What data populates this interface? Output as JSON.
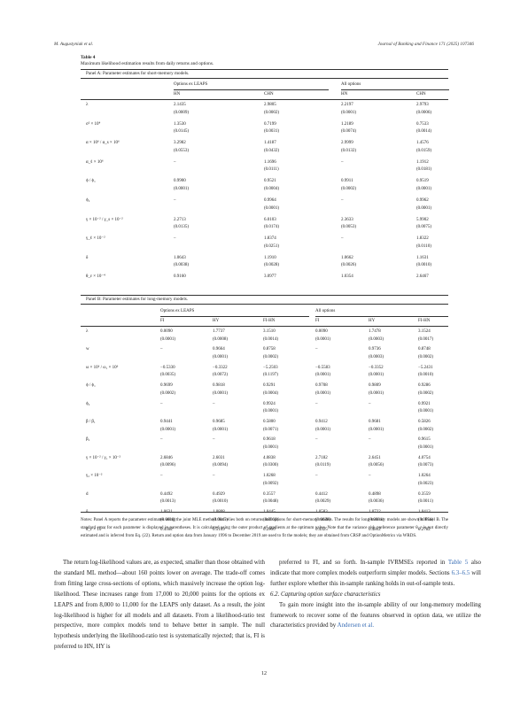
{
  "header": {
    "left": "M. Augustyniak et al.",
    "right": "Journal of Banking and Finance 171 (2025) 107346"
  },
  "table": {
    "title": "Table 4",
    "caption": "Maximum likelihood estimation results from daily returns and options.",
    "panel_a": {
      "label": "Panel A: Parameter estimates for short-memory models.",
      "groups": [
        "Options ex LEAPS",
        "All options"
      ],
      "cols": [
        "HN",
        "CHN",
        "HN",
        "CHN"
      ],
      "rows": [
        {
          "p": "λ",
          "v": [
            "2.1435",
            "2.9805",
            "2.2197",
            "2.9793"
          ],
          "se": [
            "(0.0009)",
            "(0.0002)",
            "(0.0001)",
            "(0.0006)"
          ]
        },
        {
          "p": "σ² × 10⁴",
          "v": [
            "1.3530",
            "0.7199",
            "1.2189",
            "0.7533"
          ],
          "se": [
            "(0.0145)",
            "(0.0031)",
            "(0.0074)",
            "(0.0014)"
          ]
        },
        {
          "p": "α × 10⁶ / α_s × 10⁶",
          "v": [
            "3.2982",
            "1.4187",
            "2.9999",
            "1.4576"
          ],
          "se": [
            "(0.0553)",
            "(0.0432)",
            "(0.0132)",
            "(0.0159)"
          ]
        },
        {
          "p": "α_ℓ × 10⁶",
          "v": [
            "–",
            "1.1696",
            "–",
            "1.1912"
          ],
          "se": [
            "",
            "(0.0111)",
            "",
            "(0.0181)"
          ]
        },
        {
          "p": "ϕ / ϕ₁",
          "v": [
            "0.9900",
            "0.9521",
            "0.9911",
            "0.9519"
          ],
          "se": [
            "(0.0001)",
            "(0.0004)",
            "(0.0002)",
            "(0.0001)"
          ]
        },
        {
          "p": "ϕ₂",
          "v": [
            "–",
            "0.9964",
            "–",
            "0.9962"
          ],
          "se": [
            "",
            "(0.0001)",
            "",
            "(0.0001)"
          ]
        },
        {
          "p": "γ × 10⁻² / γ_s × 10⁻²",
          "v": [
            "2.2713",
            "6.0103",
            "2.3633",
            "5.9902"
          ],
          "se": [
            "(0.0135)",
            "(0.0174)",
            "(0.0053)",
            "(0.0075)"
          ]
        },
        {
          "p": "γ_ℓ × 10⁻²",
          "v": [
            "–",
            "1.8374",
            "–",
            "1.8322"
          ],
          "se": [
            "",
            "(0.0251)",
            "",
            "(0.0110)"
          ]
        },
        {
          "p": "δ",
          "v": [
            "1.0643",
            "1.1910",
            "1.0662",
            "1.1631"
          ],
          "se": [
            "(0.0038)",
            "(0.0028)",
            "(0.0026)",
            "(0.0010)"
          ]
        },
        {
          "p": "θ_ε × 10⁻⁴",
          "v": [
            "0.9160",
            "3.0977",
            "1.0354",
            "2.6467"
          ],
          "se": [
            "",
            "",
            "",
            ""
          ]
        }
      ]
    },
    "panel_b": {
      "label": "Panel B: Parameter estimates for long-memory models.",
      "groups": [
        "Options ex LEAPS",
        "All options"
      ],
      "cols": [
        "FI",
        "HY",
        "FI-HN",
        "FI",
        "HY",
        "FI-HN"
      ],
      "rows": [
        {
          "p": "λ",
          "v": [
            "0.0090",
            "1.7737",
            "3.1510",
            "0.0090",
            "1.7478",
            "3.1524"
          ],
          "se": [
            "(0.0001)",
            "(0.0008)",
            "(0.0014)",
            "(0.0001)",
            "(0.0003)",
            "(0.0017)"
          ]
        },
        {
          "p": "w",
          "v": [
            "–",
            "0.9664",
            "0.8758",
            "–",
            "0.9736",
            "0.8748"
          ],
          "se": [
            "",
            "(0.0001)",
            "(0.0002)",
            "",
            "(0.0003)",
            "(0.0002)"
          ]
        },
        {
          "p": "ω × 10⁶ / ω₁ × 10⁶",
          "v": [
            "−0.5330",
            "−0.3322",
            "−5.2503",
            "−0.5583",
            "−0.3352",
            "−5.2431"
          ],
          "se": [
            "(0.0035)",
            "(0.0072)",
            "(0.1197)",
            "(0.0001)",
            "(0.0001)",
            "(0.0010)"
          ]
        },
        {
          "p": "ϕ / ϕ₁",
          "v": [
            "0.9699",
            "0.9818",
            "0.9291",
            "0.9708",
            "0.9809",
            "0.9286"
          ],
          "se": [
            "(0.0002)",
            "(0.0001)",
            "(0.0004)",
            "(0.0001)",
            "(0.0001)",
            "(0.0002)"
          ]
        },
        {
          "p": "ϕ₂",
          "v": [
            "–",
            "–",
            "0.9924",
            "–",
            "–",
            "0.9921"
          ],
          "se": [
            "",
            "",
            "(0.0001)",
            "",
            "",
            "(0.0001)"
          ]
        },
        {
          "p": "β / β₁",
          "v": [
            "0.9441",
            "0.9685",
            "0.5800",
            "0.9412",
            "0.9681",
            "0.5826"
          ],
          "se": [
            "(0.0001)",
            "(0.0001)",
            "(0.0071)",
            "(0.0001)",
            "(0.0001)",
            "(0.0002)"
          ]
        },
        {
          "p": "β₂",
          "v": [
            "–",
            "–",
            "0.9618",
            "–",
            "–",
            "0.9615"
          ],
          "se": [
            "",
            "",
            "(0.0001)",
            "",
            "",
            "(0.0001)"
          ]
        },
        {
          "p": "γ × 10⁻² / γ₁ × 10⁻²",
          "v": [
            "2.6846",
            "2.6031",
            "4.0838",
            "2.7182",
            "2.6451",
            "4.0754"
          ],
          "se": [
            "(0.0096)",
            "(0.0094)",
            "(0.0300)",
            "(0.0119)",
            "(0.0056)",
            "(0.0073)"
          ]
        },
        {
          "p": "γ₂ × 10⁻²",
          "v": [
            "–",
            "–",
            "1.0268",
            "–",
            "–",
            "1.0264"
          ],
          "se": [
            "",
            "",
            "(0.0092)",
            "",
            "",
            "(0.0023)"
          ]
        },
        {
          "p": "d",
          "v": [
            "0.4492",
            "0.4929",
            "0.3557",
            "0.4412",
            "0.4898",
            "0.3559"
          ],
          "se": [
            "(0.0013)",
            "(0.0010)",
            "(0.0048)",
            "(0.0029)",
            "(0.0036)",
            "(0.0011)"
          ]
        },
        {
          "p": "δ",
          "v": [
            "1.0631",
            "1.0808",
            "1.0445",
            "1.0583",
            "1.0722",
            "1.0413"
          ],
          "se": [
            "(0.0018)",
            "(0.0045)",
            "(0.0066)",
            "(0.0028)",
            "(0.0031)",
            "(0.0051)"
          ]
        },
        {
          "p": "θ_ε × 10⁻⁴",
          "v": [
            "0.4502",
            "0.5169",
            "0.2990",
            "0.4325",
            "0.4812",
            "0.2782"
          ],
          "se": [
            "",
            "",
            "",
            "",
            "",
            ""
          ]
        }
      ]
    },
    "notes": "Notes: Panel A reports the parameter estimates using the joint MLE method that relies both on returns and options for short-memory models. The results for long-memory models are shown in Panel B. The standard error for each parameter is displayed in parentheses. It is calculated using the outer product of gradients at the optimum value. Note that the variance risk preference parameter θ_ε is not directly estimated and is inferred from Eq. (22). Return and option data from January 1996 to December 2019 are used to fit the models; they are obtained from CRSP and OptionMetrics via WRDS."
  },
  "body": {
    "left_par": "The return log-likelihood values are, as expected, smaller than those obtained with the standard ML method—about 160 points lower on average. The trade-off comes from fitting large cross-sections of options, which massively increase the option log-likelihood. These increases range from 17,000 to 20,000 points for the options ex LEAPS and from 8,000 to 11,000 for the LEAPS only dataset. As a result, the joint log-likelihood is higher for all models and all datasets. From a likelihood-ratio test perspective, more complex models tend to behave better in sample. The null hypothesis underlying the likelihood-ratio test is systematically rejected; that is, FI is preferred to HN, HY is",
    "right_par1_a": "preferred to FI, and so forth. In-sample IVRMSEs reported in",
    "right_par1_link": "Table 5",
    "right_par1_b": "also indicate that more complex models outperform simpler models. Sections",
    "right_par1_link2": "6.3–6.5",
    "right_par1_c": "will further explore whether this in-sample ranking holds in out-of-sample tests.",
    "section_heading": "6.2. Capturing option surface characteristics",
    "right_par2_a": "To gain more insight into the in-sample ability of our long-memory modelling framework to recover some of the features observed in option data, we utilize the characteristics provided by",
    "right_par2_link": "Andersen et al."
  },
  "page_number": "12"
}
